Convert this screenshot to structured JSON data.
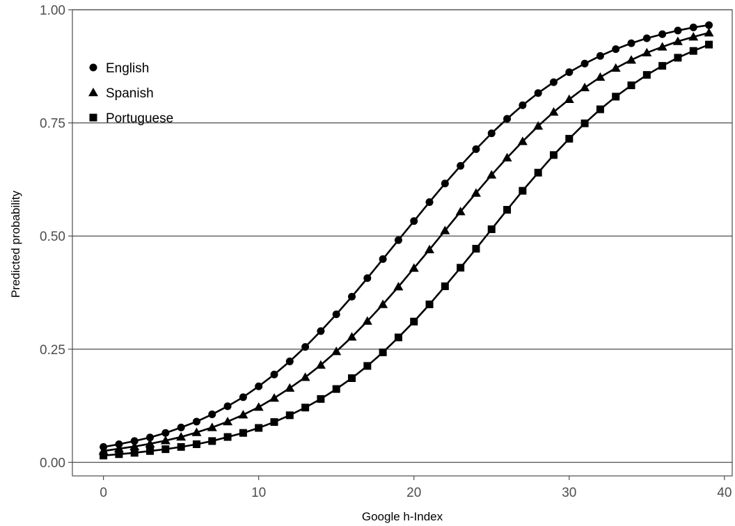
{
  "chart_data": {
    "type": "line",
    "xlabel": "Google h-Index",
    "ylabel": "Predicted probability",
    "xlim": [
      -2,
      40.5
    ],
    "ylim": [
      -0.03,
      1.0
    ],
    "x_ticks": [
      0,
      10,
      20,
      30,
      40
    ],
    "x_tick_labels": [
      "0",
      "10",
      "20",
      "30",
      "40"
    ],
    "y_ticks": [
      0,
      0.25,
      0.5,
      0.75,
      1.0
    ],
    "y_tick_labels": [
      "0.00",
      "0.25",
      "0.50",
      "0.75",
      "1.00"
    ],
    "grid": "horizontal major",
    "legend_position": "top-left inside",
    "x": [
      0,
      1,
      2,
      3,
      4,
      5,
      6,
      7,
      8,
      9,
      10,
      11,
      12,
      13,
      14,
      15,
      16,
      17,
      18,
      19,
      20,
      21,
      22,
      23,
      24,
      25,
      26,
      27,
      28,
      29,
      30,
      31,
      32,
      33,
      34,
      35,
      36,
      37,
      38,
      39
    ],
    "series": [
      {
        "name": "English",
        "marker": "circle",
        "values": [
          0.034,
          0.04,
          0.047,
          0.055,
          0.065,
          0.077,
          0.09,
          0.106,
          0.124,
          0.144,
          0.168,
          0.194,
          0.223,
          0.255,
          0.29,
          0.327,
          0.366,
          0.407,
          0.449,
          0.491,
          0.533,
          0.575,
          0.616,
          0.655,
          0.692,
          0.727,
          0.759,
          0.789,
          0.816,
          0.84,
          0.862,
          0.881,
          0.898,
          0.913,
          0.926,
          0.937,
          0.946,
          0.954,
          0.961,
          0.966
        ]
      },
      {
        "name": "Spanish",
        "marker": "triangle",
        "values": [
          0.025,
          0.03,
          0.035,
          0.041,
          0.048,
          0.056,
          0.066,
          0.077,
          0.09,
          0.105,
          0.122,
          0.142,
          0.164,
          0.188,
          0.215,
          0.245,
          0.277,
          0.312,
          0.349,
          0.388,
          0.429,
          0.47,
          0.512,
          0.554,
          0.595,
          0.635,
          0.673,
          0.709,
          0.743,
          0.774,
          0.802,
          0.828,
          0.851,
          0.871,
          0.889,
          0.905,
          0.918,
          0.93,
          0.94,
          0.949
        ]
      },
      {
        "name": "Portuguese",
        "marker": "square",
        "values": [
          0.015,
          0.018,
          0.021,
          0.025,
          0.029,
          0.034,
          0.04,
          0.047,
          0.056,
          0.065,
          0.076,
          0.089,
          0.104,
          0.121,
          0.14,
          0.162,
          0.186,
          0.213,
          0.243,
          0.276,
          0.311,
          0.349,
          0.389,
          0.43,
          0.472,
          0.515,
          0.558,
          0.6,
          0.64,
          0.679,
          0.715,
          0.749,
          0.78,
          0.808,
          0.833,
          0.856,
          0.876,
          0.894,
          0.909,
          0.923
        ]
      }
    ]
  }
}
